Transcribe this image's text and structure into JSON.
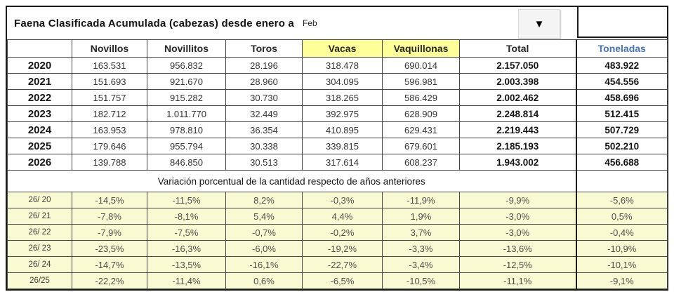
{
  "title": {
    "text": "Faena Clasificada Acumulada (cabezas) desde enero a",
    "month": "Feb"
  },
  "icons": {
    "dropdown": "▼"
  },
  "columns": [
    "",
    "Novillos",
    "Novillitos",
    "Toros",
    "Vacas",
    "Vaquillonas",
    "Total",
    "Toneladas"
  ],
  "layout_hints": {
    "highlight_cols": [
      4,
      5
    ]
  },
  "rows": [
    {
      "year": "2020",
      "values": [
        "163.531",
        "956.832",
        "28.196",
        "318.478",
        "690.014",
        "2.157.050",
        "483.922"
      ]
    },
    {
      "year": "2021",
      "values": [
        "151.693",
        "921.670",
        "28.960",
        "304.095",
        "596.981",
        "2.003.398",
        "454.556"
      ]
    },
    {
      "year": "2022",
      "values": [
        "151.757",
        "915.282",
        "30.730",
        "318.265",
        "586.429",
        "2.002.462",
        "458.696"
      ]
    },
    {
      "year": "2023",
      "values": [
        "182.712",
        "1.011.770",
        "32.449",
        "392.975",
        "628.909",
        "2.248.814",
        "512.415"
      ]
    },
    {
      "year": "2024",
      "values": [
        "163.953",
        "978.810",
        "36.354",
        "410.895",
        "629.431",
        "2.219.443",
        "507.729"
      ]
    },
    {
      "year": "2025",
      "values": [
        "179.646",
        "955.794",
        "30.338",
        "339.815",
        "679.601",
        "2.185.193",
        "502.210"
      ]
    },
    {
      "year": "2026",
      "values": [
        "139.788",
        "846.850",
        "30.513",
        "317.614",
        "608.237",
        "1.943.002",
        "456.688"
      ]
    }
  ],
  "variation_caption": "Variación porcentual de la cantidad respecto de años anteriores",
  "variation_rows": [
    {
      "label": "26/ 20",
      "values": [
        "-14,5%",
        "-11,5%",
        "8,2%",
        "-0,3%",
        "-11,9%",
        "-9,9%",
        "-5,6%"
      ]
    },
    {
      "label": "26/ 21",
      "values": [
        "-7,8%",
        "-8,1%",
        "5,4%",
        "4,4%",
        "1,9%",
        "-3,0%",
        "0,5%"
      ]
    },
    {
      "label": "26/ 22",
      "values": [
        "-7,9%",
        "-7,5%",
        "-0,7%",
        "-0,2%",
        "3,7%",
        "-3,0%",
        "-0,4%"
      ]
    },
    {
      "label": "26/ 23",
      "values": [
        "-23,5%",
        "-16,3%",
        "-6,0%",
        "-19,2%",
        "-3,3%",
        "-13,6%",
        "-10,9%"
      ]
    },
    {
      "label": "26/ 24",
      "values": [
        "-14,7%",
        "-13,5%",
        "-16,1%",
        "-22,7%",
        "-3,4%",
        "-12,5%",
        "-10,1%"
      ]
    },
    {
      "label": "26/25",
      "values": [
        "-22,2%",
        "-11,4%",
        "0,6%",
        "-6,5%",
        "-10,5%",
        "-11,1%",
        "-9,1%"
      ]
    }
  ],
  "colors": {
    "header_highlight": "#FFFF99",
    "variation_bg": "#FAFAD2",
    "toneladas_text": "#4472C4",
    "border": "#1C1C1C"
  }
}
